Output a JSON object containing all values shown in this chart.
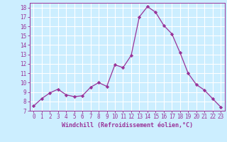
{
  "x": [
    0,
    1,
    2,
    3,
    4,
    5,
    6,
    7,
    8,
    9,
    10,
    11,
    12,
    13,
    14,
    15,
    16,
    17,
    18,
    19,
    20,
    21,
    22,
    23
  ],
  "y": [
    7.5,
    8.3,
    8.9,
    9.3,
    8.7,
    8.5,
    8.6,
    9.5,
    10.0,
    9.6,
    11.9,
    11.6,
    12.9,
    17.0,
    18.1,
    17.5,
    16.1,
    15.2,
    13.2,
    11.0,
    9.8,
    9.2,
    8.3,
    7.4
  ],
  "line_color": "#993399",
  "marker": "D",
  "marker_size": 2.2,
  "bg_color": "#cceeff",
  "grid_color": "#ffffff",
  "xlabel": "Windchill (Refroidissement éolien,°C)",
  "xlabel_color": "#993399",
  "tick_color": "#993399",
  "ylim": [
    7,
    18.5
  ],
  "xlim": [
    -0.5,
    23.5
  ],
  "yticks": [
    7,
    8,
    9,
    10,
    11,
    12,
    13,
    14,
    15,
    16,
    17,
    18
  ],
  "xticks": [
    0,
    1,
    2,
    3,
    4,
    5,
    6,
    7,
    8,
    9,
    10,
    11,
    12,
    13,
    14,
    15,
    16,
    17,
    18,
    19,
    20,
    21,
    22,
    23
  ],
  "tick_fontsize": 5.5,
  "xlabel_fontsize": 6.0,
  "linewidth": 0.9
}
